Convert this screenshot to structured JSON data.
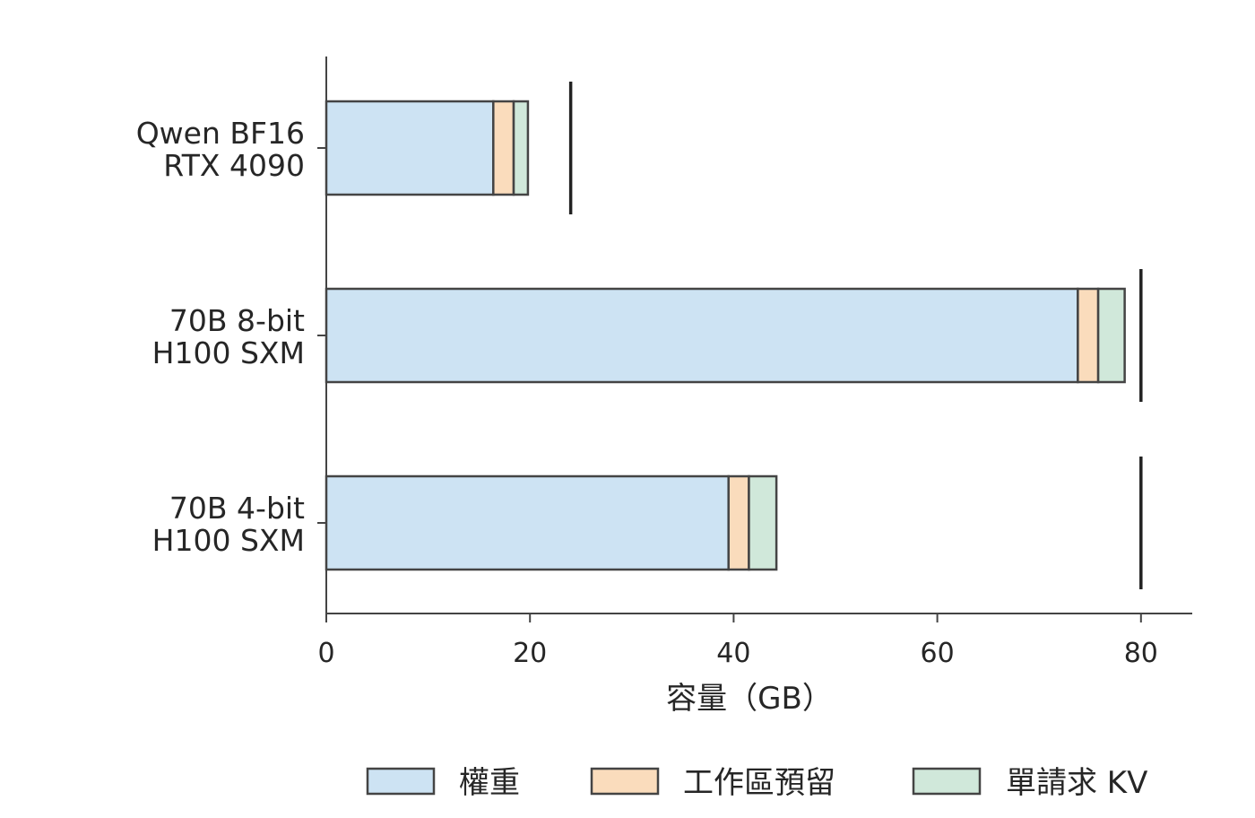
{
  "chart_data": {
    "type": "bar",
    "orientation": "horizontal",
    "stacked": true,
    "title": "",
    "xlabel": "容量（GB）",
    "ylabel": "",
    "xlim": [
      0,
      85
    ],
    "xticks": [
      0,
      20,
      40,
      60,
      80
    ],
    "grid": false,
    "legend_position": "bottom",
    "categories": [
      [
        "Qwen BF16",
        "RTX 4090"
      ],
      [
        "70B 8-bit",
        "H100 SXM"
      ],
      [
        "70B 4-bit",
        "H100 SXM"
      ]
    ],
    "series": [
      {
        "name": "權重",
        "color": "#cde3f3",
        "values": [
          16.4,
          73.8,
          39.5
        ]
      },
      {
        "name": "工作區預留",
        "color": "#fadcbc",
        "values": [
          2.0,
          2.0,
          2.0
        ]
      },
      {
        "name": "單請求 KV",
        "color": "#d0e8da",
        "values": [
          1.4,
          2.6,
          2.7
        ]
      }
    ],
    "capacity_lines": [
      24,
      80,
      80
    ],
    "bar_edge_color": "#444444",
    "capacity_line_color": "#222222"
  }
}
